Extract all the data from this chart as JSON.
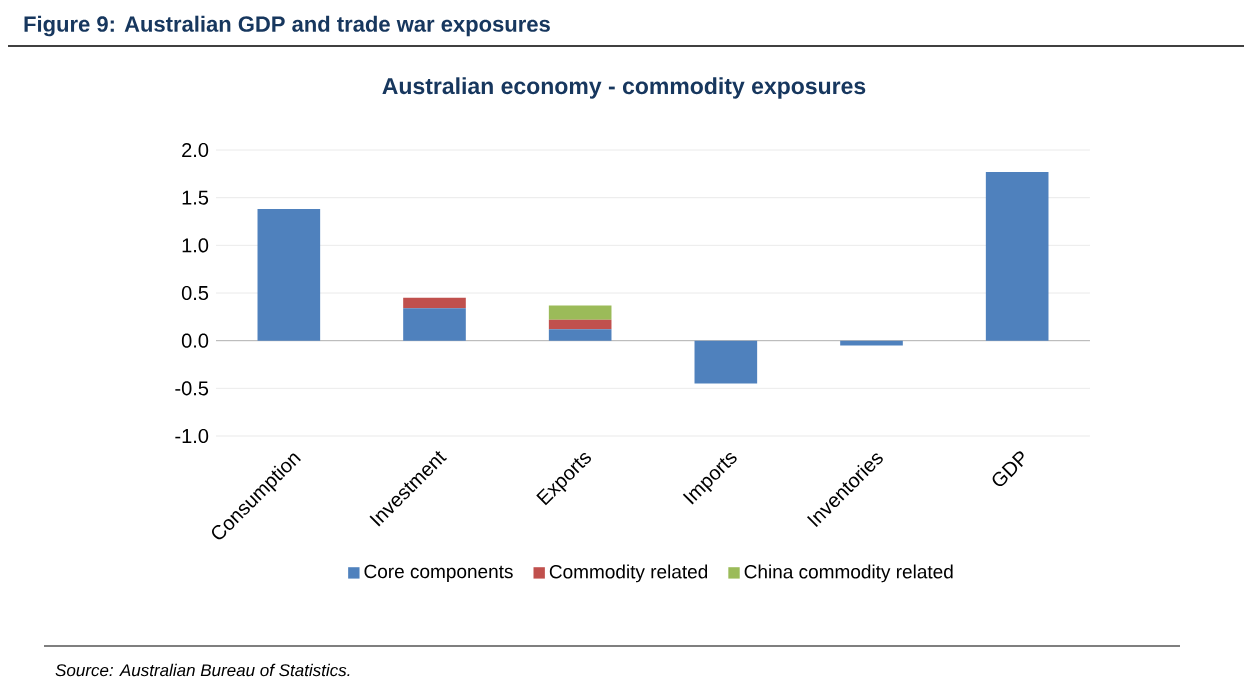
{
  "chart_data": {
    "type": "bar",
    "stacked": true,
    "title": "Figure 9: Australian GDP and trade war exposures",
    "subtitle": "Australian economy - commodity exposures",
    "categories": [
      "Consumption",
      "Investment",
      "Exports",
      "Imports",
      "Inventories",
      "GDP"
    ],
    "series": [
      {
        "name": "Core components",
        "color": "#4f81bd",
        "values": [
          1.38,
          0.34,
          0.12,
          -0.45,
          -0.05,
          1.77
        ]
      },
      {
        "name": "Commodity related",
        "color": "#c0504d",
        "values": [
          0,
          0.11,
          0.1,
          0,
          0,
          0
        ]
      },
      {
        "name": "China commodity related",
        "color": "#9bbb59",
        "values": [
          0,
          0,
          0.15,
          0,
          0,
          0
        ]
      }
    ],
    "ylim": [
      -1.0,
      2.0
    ],
    "yticks": [
      {
        "value": -1.0,
        "label": "-1.0"
      },
      {
        "value": -0.5,
        "label": "-0.5"
      },
      {
        "value": 0,
        "label": "0.0"
      },
      {
        "value": 0.5,
        "label": "0.5"
      },
      {
        "value": 1.0,
        "label": "1.0"
      },
      {
        "value": 1.5,
        "label": "1.5"
      },
      {
        "value": 2.0,
        "label": "2.0"
      }
    ],
    "grid": "y",
    "legend": "bottom",
    "annotations": [
      "Source: Australian Bureau of Statistics."
    ]
  }
}
